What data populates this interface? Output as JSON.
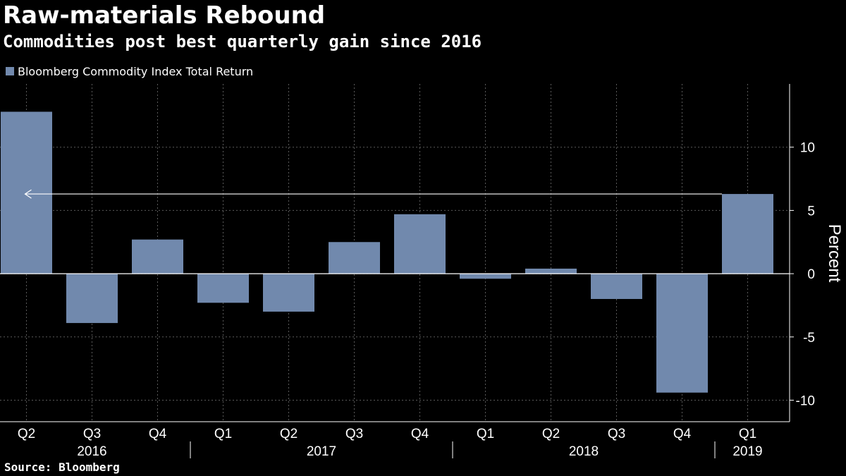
{
  "header": {
    "title": "Raw-materials Rebound",
    "subtitle": "Commodities post best quarterly gain since 2016"
  },
  "legend": {
    "label": "Bloomberg Commodity Index Total Return",
    "color": "#7189ad"
  },
  "footer": {
    "source": "Source: Bloomberg"
  },
  "colors": {
    "background": "#000000",
    "bar": "#7189ad",
    "grid": "#5a5a5a",
    "text": "#ffffff",
    "arrow": "#ffffff"
  },
  "chart_data": {
    "type": "bar",
    "categories": [
      "Q2",
      "Q3",
      "Q4",
      "Q1",
      "Q2",
      "Q3",
      "Q4",
      "Q1",
      "Q2",
      "Q3",
      "Q4",
      "Q1"
    ],
    "years": [
      {
        "label": "2016",
        "quarters": [
          "Q2",
          "Q3",
          "Q4"
        ]
      },
      {
        "label": "2017",
        "quarters": [
          "Q1",
          "Q2",
          "Q3",
          "Q4"
        ]
      },
      {
        "label": "2018",
        "quarters": [
          "Q1",
          "Q2",
          "Q3",
          "Q4"
        ]
      },
      {
        "label": "2019",
        "quarters": [
          "Q1"
        ]
      }
    ],
    "series": [
      {
        "name": "Bloomberg Commodity Index Total Return",
        "values": [
          12.8,
          -3.9,
          2.7,
          -2.3,
          -3.0,
          2.5,
          4.7,
          -0.4,
          0.4,
          -2.0,
          -9.4,
          6.3
        ]
      }
    ],
    "ylabel": "Percent",
    "ylim": [
      -11.7,
      15
    ],
    "yticks": [
      10,
      5,
      0,
      -5,
      -10
    ],
    "y_axis_side": "right",
    "grid": true,
    "legend_position": "top-left",
    "annotation": {
      "type": "arrow",
      "from_category_index": 11,
      "to_category_index": 0,
      "y": 6.3
    }
  }
}
